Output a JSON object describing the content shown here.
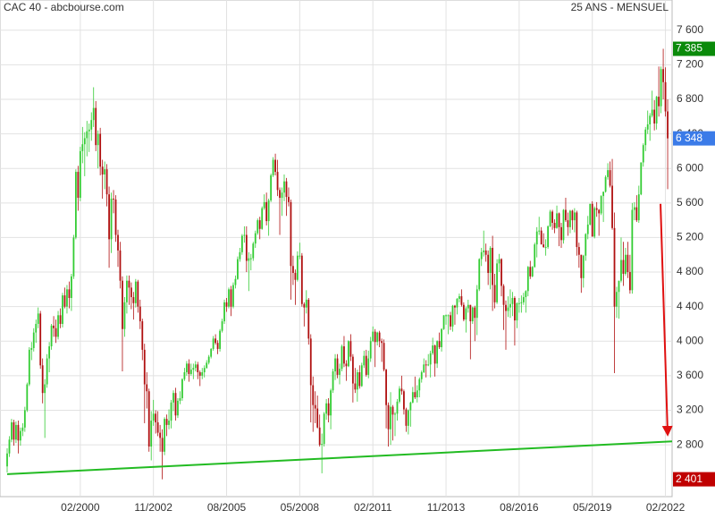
{
  "chart_data": {
    "type": "candlestick",
    "title": "CAC 40 - abcbourse.com",
    "subtitle": "25 ANS - MENSUEL",
    "xlim": [
      "05/1997",
      "03/2022"
    ],
    "xticks": [
      "02/2000",
      "11/2002",
      "08/2005",
      "05/2008",
      "02/2011",
      "11/2013",
      "08/2016",
      "05/2019",
      "02/2022"
    ],
    "ylim": [
      2200,
      7950
    ],
    "yticks": [
      {
        "value": 2800,
        "label": "2 800"
      },
      {
        "value": 3200,
        "label": "3 200"
      },
      {
        "value": 3600,
        "label": "3 600"
      },
      {
        "value": 4000,
        "label": "4 000"
      },
      {
        "value": 4400,
        "label": "4 400"
      },
      {
        "value": 4800,
        "label": "4 800"
      },
      {
        "value": 5200,
        "label": "5 200"
      },
      {
        "value": 5600,
        "label": "5 600"
      },
      {
        "value": 6000,
        "label": "6 000"
      },
      {
        "value": 6400,
        "label": "6 400"
      },
      {
        "value": 6800,
        "label": "6 800"
      },
      {
        "value": 7200,
        "label": "7 200"
      },
      {
        "value": 7600,
        "label": "7 600"
      }
    ],
    "grid": true,
    "up_color": "#33cc33",
    "down_color": "#b01010",
    "price_labels": [
      {
        "value": 7385,
        "label": "7 385",
        "color": "#0a8a0a"
      },
      {
        "value": 6348,
        "label": "6 348",
        "color": "#3b7be8"
      },
      {
        "value": 2401,
        "label": "2 401",
        "color": "#c00000"
      }
    ],
    "support_line": {
      "start": 2460,
      "end": 2840,
      "color": "#22bb22"
    },
    "arrow": {
      "start": 5590,
      "end": 2920,
      "color": "#e01010"
    },
    "open": [
      2550,
      2700,
      2860,
      3060,
      2860,
      3030,
      2850,
      2960,
      3000,
      3200,
      3500,
      3900,
      3920,
      4100,
      4200,
      4320,
      3720,
      3400,
      3500,
      3800,
      3940,
      4180,
      4150,
      4050,
      4300,
      4200,
      4530,
      4400,
      4600,
      4500,
      4750,
      5200,
      5960,
      5660,
      6200,
      6280,
      6350,
      6430,
      6450,
      6560,
      6700,
      6270,
      6400,
      6020,
      5930,
      5990,
      5700,
      5180,
      5650,
      5640,
      5230,
      5050,
      4700,
      4140,
      4450,
      4700,
      4620,
      4510,
      4440,
      4690,
      4400,
      4230,
      3900,
      3500,
      3420,
      2780,
      3080,
      3160,
      3060,
      2940,
      2880,
      2720,
      3100,
      3030,
      3080,
      3290,
      3400,
      3140,
      3310,
      3340,
      3560,
      3640,
      3740,
      3620,
      3670,
      3690,
      3730,
      3640,
      3600,
      3640,
      3690,
      3750,
      3820,
      3910,
      4030,
      3980,
      3910,
      4120,
      4230,
      4450,
      4400,
      4600,
      4400,
      4650,
      4720,
      4950,
      5030,
      5220,
      5230,
      4930,
      4960,
      4960,
      5130,
      5250,
      5400,
      5300,
      5540,
      5610,
      5390,
      5630,
      5920,
      6100,
      5960,
      5750,
      5660,
      5720,
      5850,
      5670,
      5610,
      4870,
      4790,
      4710,
      4990,
      4990,
      4430,
      4390,
      4480,
      4030,
      3490,
      3260,
      3220,
      3000,
      2800,
      2810,
      3160,
      3280,
      3140,
      3430,
      3650,
      3800,
      3610,
      3680,
      3940,
      3740,
      3710,
      4000,
      3820,
      3510,
      3440,
      3640,
      3480,
      3720,
      3830,
      3610,
      3800,
      4000,
      4110,
      3990,
      4100,
      4000,
      3980,
      3670,
      3260,
      2980,
      3240,
      3150,
      3160,
      3300,
      3450,
      3420,
      3210,
      3020,
      3200,
      3290,
      3410,
      3350,
      3430,
      3560,
      3640,
      3730,
      3720,
      3730,
      3860,
      3950,
      3740,
      4000,
      3930,
      4140,
      4300,
      4300,
      4300,
      4170,
      4410,
      4390,
      4490,
      4520,
      4420,
      4250,
      4380,
      4420,
      4230,
      4390,
      4270,
      4600,
      4950,
      5030,
      5050,
      5000,
      4790,
      5080,
      4650,
      4450,
      4900,
      4950,
      4640,
      4420,
      4350,
      4390,
      4430,
      4500,
      4240,
      4440,
      4440,
      4450,
      4510,
      4580,
      4860,
      4750,
      4860,
      5120,
      5270,
      5280,
      5120,
      5090,
      5090,
      5330,
      5500,
      5370,
      5310,
      5480,
      5320,
      5170,
      5520,
      5400,
      5320,
      5510,
      5400,
      5490,
      5090,
      5000,
      4730,
      4990,
      5240,
      5350,
      5590,
      5210,
      5540,
      5520,
      5480,
      5680,
      5730,
      5900,
      5980,
      5800,
      5310,
      4400,
      4570,
      4700,
      4940,
      4780,
      5000,
      4800,
      4590,
      5520,
      5550,
      5400,
      5700,
      6070,
      6270,
      6450,
      6510,
      6610,
      6680,
      6520,
      6830,
      6720,
      7150,
      6999,
      6660
    ],
    "high": [
      2760,
      2900,
      3100,
      3090,
      3070,
      3080,
      3000,
      3050,
      3240,
      3520,
      3930,
      3990,
      4150,
      4250,
      4390,
      4350,
      3800,
      3560,
      3850,
      3990,
      4200,
      4290,
      4250,
      4350,
      4380,
      4560,
      4620,
      4650,
      4690,
      4780,
      5230,
      5990,
      6030,
      6250,
      6480,
      6420,
      6550,
      6520,
      6650,
      6940,
      6780,
      6440,
      6470,
      6100,
      6080,
      6050,
      5790,
      5720,
      5750,
      5690,
      5290,
      5150,
      4750,
      4510,
      4760,
      4760,
      4680,
      4570,
      4720,
      4710,
      4480,
      4260,
      3970,
      3640,
      3450,
      3190,
      3320,
      3200,
      3190,
      3030,
      2980,
      3120,
      3150,
      3210,
      3320,
      3430,
      3460,
      3340,
      3420,
      3570,
      3690,
      3770,
      3790,
      3740,
      3740,
      3770,
      3760,
      3660,
      3690,
      3720,
      3780,
      3840,
      3920,
      4060,
      4080,
      4010,
      4140,
      4260,
      4480,
      4500,
      4620,
      4640,
      4680,
      4760,
      4980,
      5080,
      5240,
      5330,
      5330,
      5030,
      5010,
      5150,
      5280,
      5420,
      5440,
      5560,
      5700,
      5720,
      5650,
      5940,
      6130,
      6170,
      6100,
      5780,
      5780,
      5930,
      5890,
      5780,
      5640,
      4990,
      4830,
      5040,
      5140,
      5020,
      4450,
      4590,
      4500,
      4080,
      3590,
      3420,
      3370,
      3150,
      2930,
      3180,
      3330,
      3340,
      3450,
      3680,
      3850,
      3850,
      3740,
      3960,
      4060,
      3780,
      4010,
      4080,
      3850,
      3690,
      3670,
      3720,
      3750,
      3890,
      3900,
      3890,
      4050,
      4170,
      4140,
      4110,
      4120,
      4030,
      4020,
      3680,
      3290,
      3410,
      3260,
      3180,
      3330,
      3480,
      3600,
      3440,
      3230,
      3210,
      3300,
      3470,
      3590,
      3490,
      3580,
      3660,
      3800,
      3780,
      3850,
      3890,
      4040,
      3960,
      4010,
      4100,
      4150,
      4300,
      4310,
      4310,
      4340,
      4420,
      4420,
      4500,
      4550,
      4600,
      4450,
      4400,
      4480,
      4420,
      4400,
      4410,
      4650,
      4960,
      5080,
      5280,
      5130,
      5050,
      5100,
      5220,
      4780,
      4950,
      5010,
      4960,
      4660,
      4470,
      4520,
      4600,
      4570,
      4520,
      4450,
      4500,
      4530,
      4560,
      4590,
      4870,
      4930,
      4870,
      5140,
      5320,
      5440,
      5320,
      5250,
      5180,
      5340,
      5520,
      5520,
      5410,
      5570,
      5490,
      5370,
      5530,
      5660,
      5490,
      5520,
      5520,
      5540,
      5510,
      5140,
      5000,
      5000,
      5250,
      5450,
      5590,
      5620,
      5560,
      5610,
      5530,
      5690,
      5730,
      5920,
      6060,
      6080,
      6110,
      5490,
      4630,
      4700,
      5200,
      5150,
      5080,
      5150,
      5000,
      5600,
      5610,
      5690,
      5800,
      6070,
      6290,
      6480,
      6670,
      6640,
      6900,
      6790,
      6840,
      7180,
      7180,
      7385,
      7170,
      6800
    ],
    "low": [
      2480,
      2660,
      2830,
      2790,
      2820,
      2700,
      2790,
      2900,
      2950,
      3180,
      3480,
      3780,
      3880,
      3980,
      4150,
      3680,
      3280,
      2880,
      3460,
      3640,
      3900,
      4050,
      3980,
      4020,
      4150,
      4160,
      4380,
      4320,
      4380,
      4350,
      4720,
      5180,
      5510,
      5620,
      6060,
      5910,
      6140,
      6190,
      6320,
      6480,
      6200,
      6000,
      5920,
      5650,
      5760,
      5560,
      4850,
      5020,
      5480,
      5150,
      4860,
      4610,
      3650,
      4050,
      4320,
      4420,
      4370,
      4250,
      4390,
      4330,
      4140,
      3780,
      3050,
      3220,
      2720,
      2620,
      3020,
      2930,
      2900,
      2720,
      2401,
      2680,
      2900,
      2980,
      2990,
      3190,
      3080,
      3110,
      3270,
      3310,
      3540,
      3600,
      3530,
      3600,
      3560,
      3650,
      3560,
      3480,
      3560,
      3580,
      3680,
      3730,
      3800,
      3890,
      3960,
      3850,
      3880,
      4100,
      4200,
      4340,
      4380,
      4290,
      4380,
      4610,
      4710,
      4920,
      5000,
      5140,
      4800,
      4580,
      4820,
      4930,
      5080,
      5230,
      5180,
      5290,
      5520,
      5340,
      5220,
      5610,
      5900,
      5920,
      5680,
      5230,
      5450,
      5620,
      5450,
      5560,
      4480,
      4650,
      4420,
      4690,
      4950,
      4400,
      4170,
      4320,
      3960,
      3060,
      2950,
      3050,
      2990,
      2780,
      2470,
      2780,
      3090,
      3060,
      2980,
      3400,
      3550,
      3570,
      3500,
      3650,
      3700,
      3540,
      3700,
      3770,
      3290,
      3400,
      3300,
      3450,
      3470,
      3690,
      3590,
      3570,
      3760,
      3990,
      3700,
      3950,
      3930,
      3760,
      3650,
      2990,
      2780,
      2800,
      2850,
      2900,
      3080,
      3280,
      3380,
      3150,
      2950,
      2920,
      3010,
      3280,
      3330,
      3290,
      3350,
      3520,
      3630,
      3580,
      3710,
      3580,
      3840,
      3590,
      3690,
      3910,
      3880,
      4130,
      4190,
      4080,
      4130,
      4110,
      4190,
      4310,
      4450,
      4400,
      4230,
      4100,
      4330,
      3790,
      4200,
      4000,
      4070,
      4580,
      4870,
      4980,
      4920,
      4650,
      4600,
      4350,
      4380,
      4430,
      4800,
      4520,
      4130,
      3900,
      4280,
      4270,
      4290,
      3950,
      4150,
      4330,
      4330,
      4420,
      4330,
      4520,
      4720,
      4740,
      4850,
      4970,
      5230,
      5120,
      5080,
      4990,
      5070,
      5320,
      5290,
      5250,
      5300,
      5100,
      5080,
      5130,
      5380,
      5220,
      5250,
      5290,
      5260,
      4990,
      4850,
      4560,
      4620,
      4930,
      5180,
      5340,
      5210,
      5190,
      5440,
      5220,
      5460,
      5380,
      5720,
      5870,
      5780,
      5290,
      3630,
      4270,
      4260,
      4680,
      4640,
      4760,
      4730,
      4550,
      4550,
      5400,
      5380,
      5370,
      5690,
      6020,
      6200,
      6400,
      6320,
      6590,
      6440,
      6450,
      6600,
      6640,
      6800,
      6600,
      5760
    ],
    "close": [
      2700,
      2860,
      3060,
      2860,
      3030,
      2850,
      2960,
      3000,
      3200,
      3500,
      3900,
      3920,
      4100,
      4200,
      4320,
      3720,
      3400,
      3500,
      3800,
      3940,
      4180,
      4150,
      4050,
      4300,
      4200,
      4530,
      4400,
      4600,
      4500,
      4750,
      5200,
      5960,
      5660,
      6200,
      6280,
      6350,
      6430,
      6450,
      6560,
      6700,
      6270,
      6400,
      6020,
      5930,
      5990,
      5700,
      5180,
      5650,
      5640,
      5230,
      5050,
      4700,
      4140,
      4450,
      4700,
      4620,
      4510,
      4440,
      4690,
      4400,
      4230,
      3900,
      3500,
      3420,
      2780,
      3080,
      3160,
      3060,
      2940,
      2880,
      2720,
      3100,
      3030,
      3080,
      3290,
      3400,
      3140,
      3310,
      3340,
      3560,
      3640,
      3740,
      3620,
      3670,
      3690,
      3730,
      3640,
      3600,
      3640,
      3690,
      3750,
      3820,
      3910,
      4030,
      3980,
      3910,
      4120,
      4230,
      4450,
      4400,
      4600,
      4400,
      4650,
      4720,
      4950,
      5030,
      5220,
      5230,
      4930,
      4960,
      4960,
      5130,
      5250,
      5400,
      5300,
      5540,
      5610,
      5390,
      5630,
      5920,
      6100,
      5960,
      5750,
      5660,
      5720,
      5850,
      5670,
      5610,
      4870,
      4790,
      4710,
      4990,
      4990,
      4430,
      4390,
      4480,
      4030,
      3490,
      3260,
      3220,
      3000,
      2800,
      2810,
      3160,
      3280,
      3140,
      3430,
      3650,
      3800,
      3610,
      3680,
      3940,
      3740,
      3710,
      4000,
      3820,
      3510,
      3440,
      3640,
      3480,
      3720,
      3830,
      3610,
      3800,
      4000,
      4110,
      3990,
      4100,
      4000,
      3980,
      3670,
      3260,
      2980,
      3240,
      3150,
      3160,
      3300,
      3450,
      3420,
      3210,
      3020,
      3200,
      3290,
      3410,
      3350,
      3430,
      3560,
      3640,
      3730,
      3720,
      3730,
      3860,
      3950,
      3740,
      4000,
      3930,
      4140,
      4300,
      4300,
      4300,
      4170,
      4410,
      4390,
      4490,
      4520,
      4420,
      4250,
      4380,
      4420,
      4230,
      4390,
      4270,
      4600,
      4950,
      5030,
      5050,
      5000,
      4790,
      5080,
      4650,
      4450,
      4900,
      4950,
      4640,
      4420,
      4350,
      4390,
      4430,
      4500,
      4240,
      4440,
      4440,
      4450,
      4510,
      4580,
      4860,
      4750,
      4860,
      5120,
      5270,
      5280,
      5120,
      5090,
      5090,
      5330,
      5500,
      5370,
      5310,
      5480,
      5320,
      5170,
      5520,
      5400,
      5320,
      5510,
      5400,
      5490,
      5090,
      5000,
      4730,
      4990,
      5240,
      5350,
      5590,
      5210,
      5540,
      5520,
      5480,
      5680,
      5730,
      5900,
      5980,
      5800,
      5310,
      4400,
      4570,
      4700,
      4940,
      4780,
      5000,
      4800,
      4590,
      5520,
      5550,
      5400,
      5700,
      6070,
      6270,
      6450,
      6510,
      6610,
      6680,
      6520,
      6830,
      6720,
      7150,
      6999,
      6660,
      6348
    ]
  }
}
